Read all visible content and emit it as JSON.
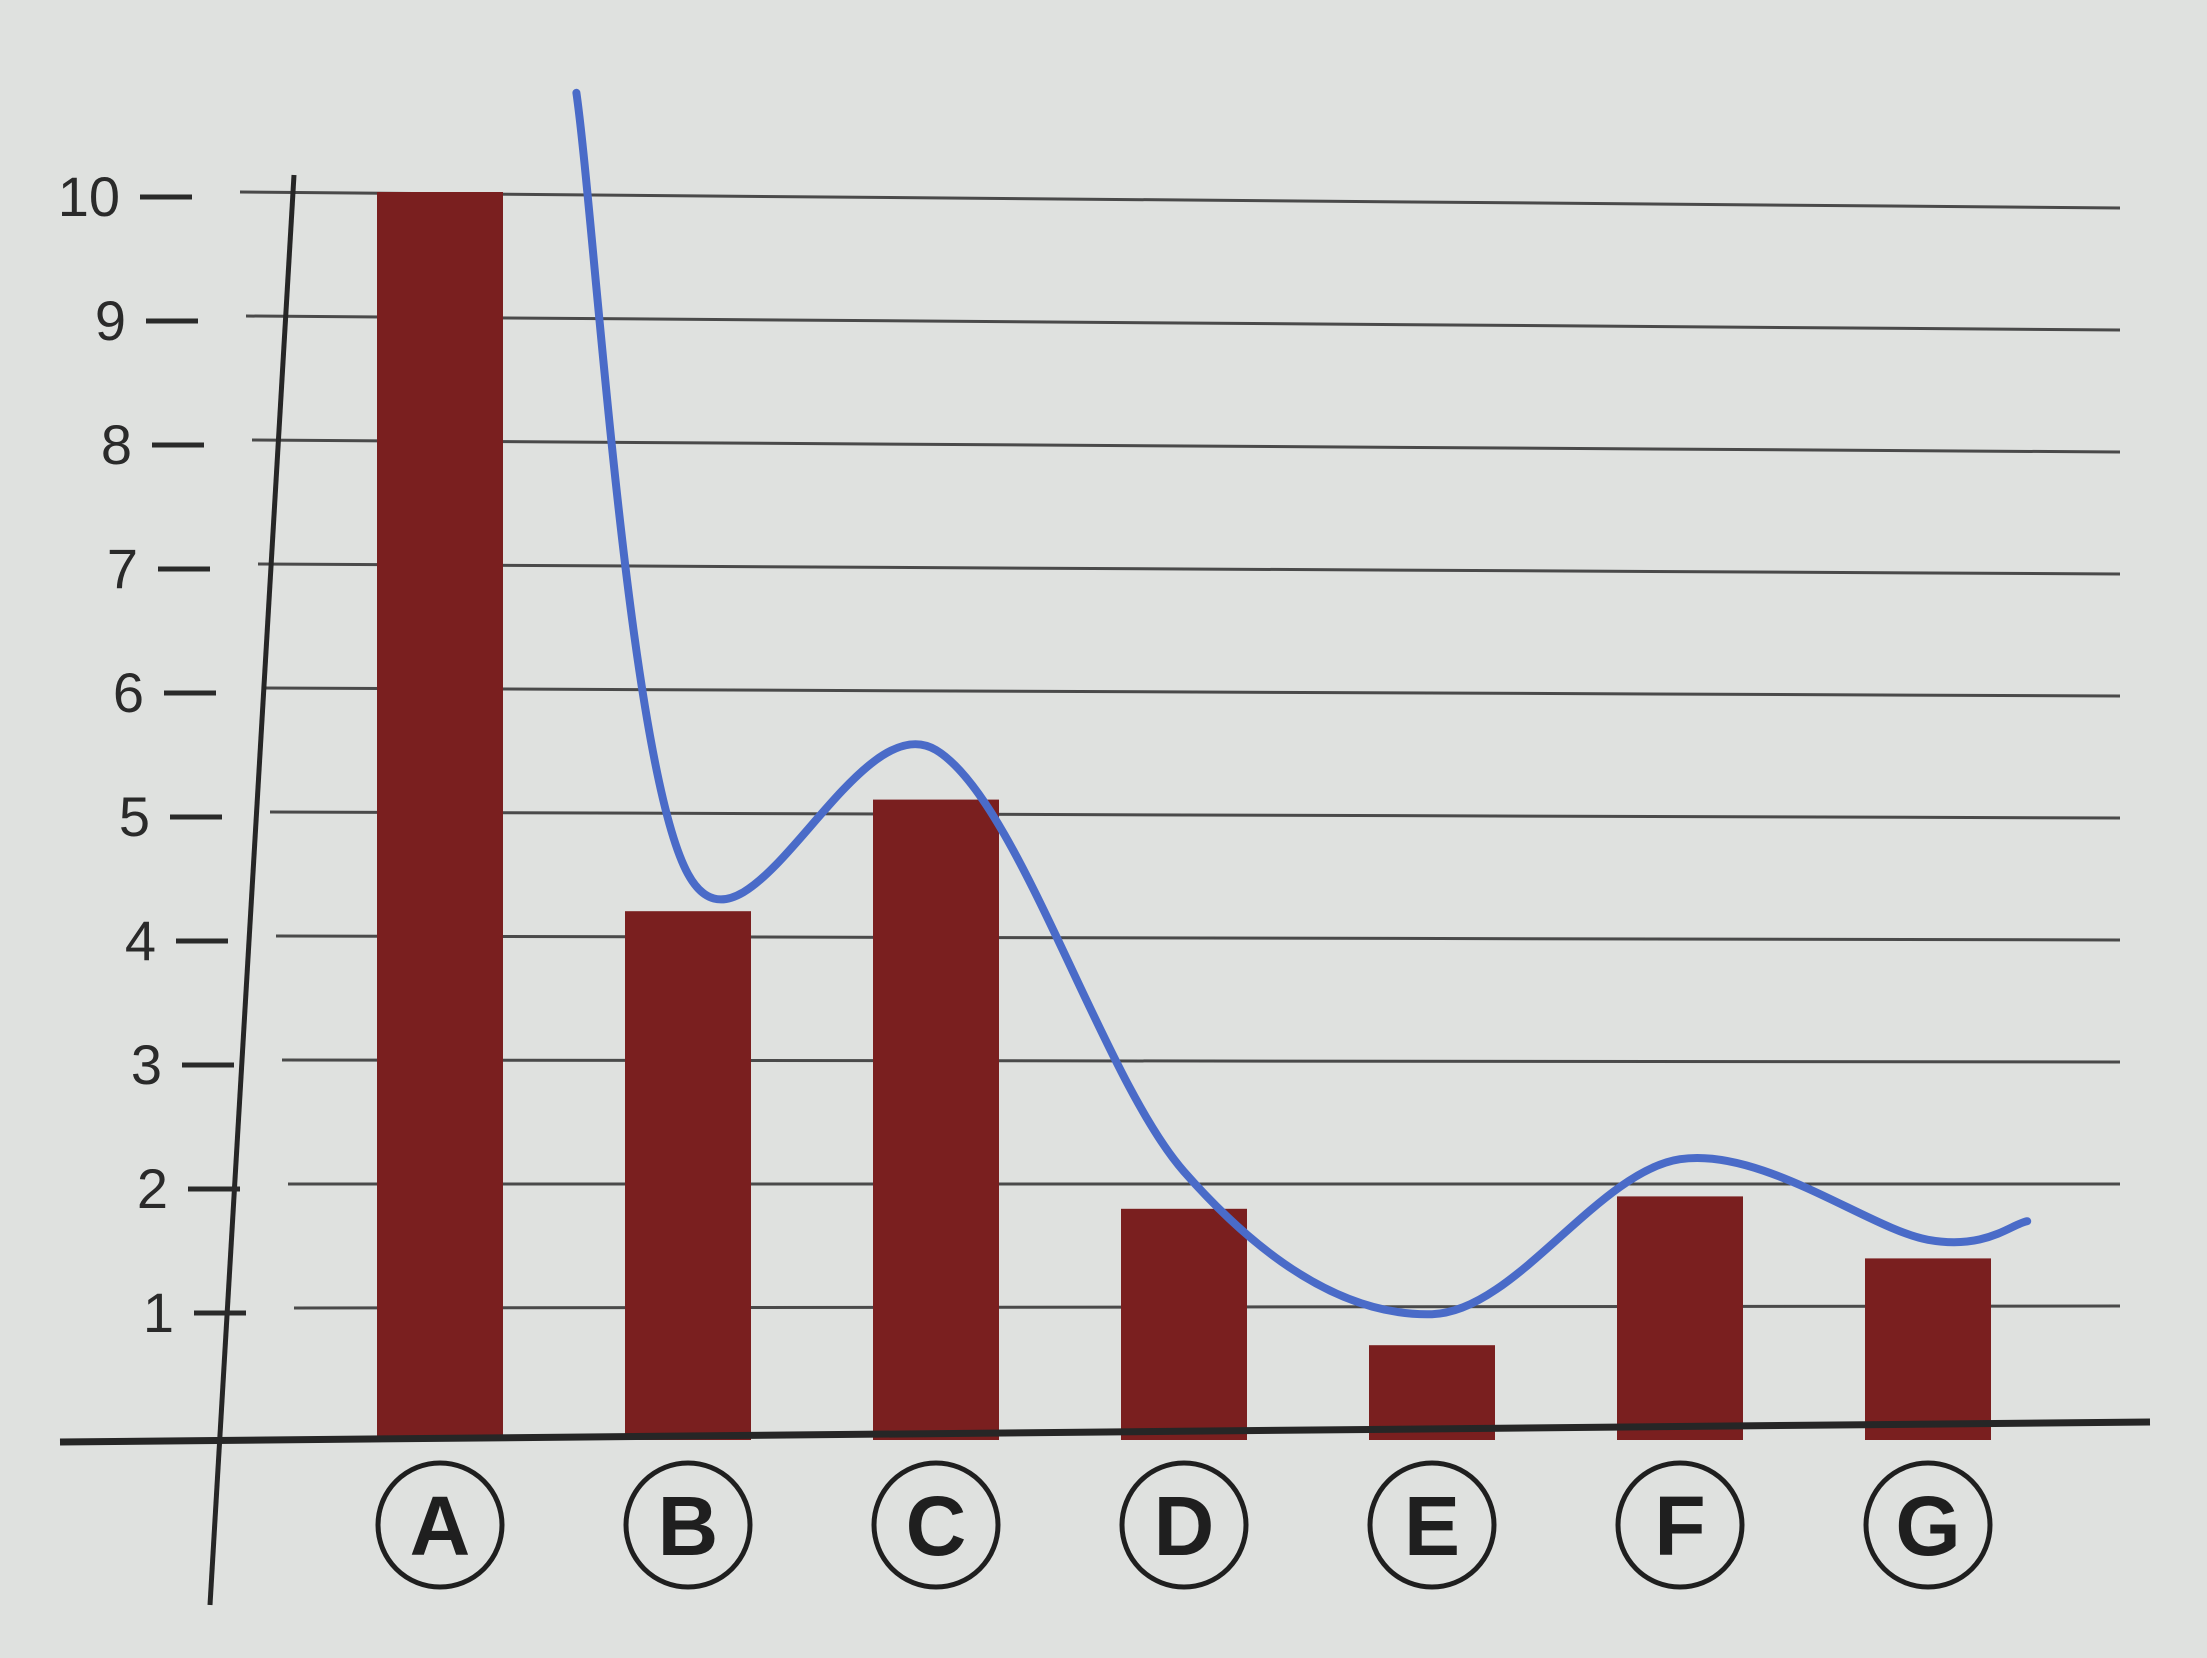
{
  "chart_data": {
    "type": "bar",
    "categories": [
      "A",
      "B",
      "C",
      "D",
      "E",
      "F",
      "G"
    ],
    "values": [
      10,
      4.2,
      5.1,
      1.8,
      0.7,
      1.9,
      1.4
    ],
    "trend_line": {
      "type": "line",
      "shape": "smooth",
      "points": [
        {
          "x": "A",
          "x_offset": 0.55,
          "y": 10.8
        },
        {
          "x": "B",
          "y": 4.5
        },
        {
          "x": "C",
          "y": 5.5
        },
        {
          "x": "D",
          "y": 2.1
        },
        {
          "x": "E",
          "y": 0.95
        },
        {
          "x": "F",
          "y": 2.2
        },
        {
          "x": "G",
          "y": 1.55
        },
        {
          "x": "G",
          "x_offset": 0.4,
          "y": 1.7
        }
      ]
    },
    "y_ticks": [
      1,
      2,
      3,
      4,
      5,
      6,
      7,
      8,
      9,
      10
    ],
    "ylim": [
      0,
      10.8
    ],
    "title": "",
    "xlabel": "",
    "ylabel": "",
    "grid": true,
    "colors": {
      "bars": "#7a1f1f",
      "line": "#4a6bc8",
      "grid": "#4a4a4a",
      "axis": "#2a2a2a",
      "background": "#dfe1df"
    }
  }
}
